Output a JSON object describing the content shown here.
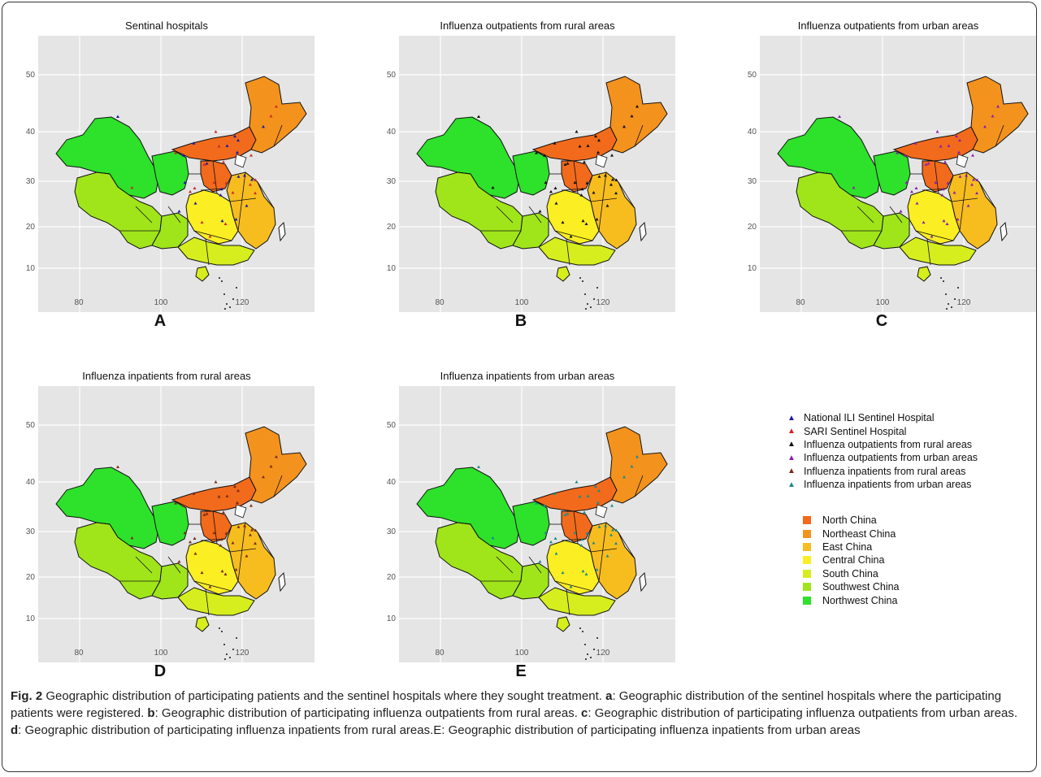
{
  "panels": [
    {
      "id": "A",
      "title": "Sentinal hospitals",
      "letter": "A",
      "marker_colors": [
        "#1a1aa8",
        "#cc2a2a"
      ]
    },
    {
      "id": "B",
      "title": "Influenza outpatients from rural areas",
      "letter": "B",
      "marker_colors": [
        "#111111"
      ]
    },
    {
      "id": "C",
      "title": "Influenza outpatients from urban areas",
      "letter": "C",
      "marker_colors": [
        "#8a1fb0"
      ]
    },
    {
      "id": "D",
      "title": "Influenza inpatients from rural areas",
      "letter": "D",
      "marker_colors": [
        "#7a2c1a"
      ]
    },
    {
      "id": "E",
      "title": "Influenza inpatients from urban areas",
      "letter": "E",
      "marker_colors": [
        "#1b8a8a"
      ]
    }
  ],
  "axes": {
    "y_ticks": [
      "50",
      "40",
      "30",
      "20",
      "10"
    ],
    "x_ticks": [
      "80",
      "100",
      "120"
    ]
  },
  "marker_legend": [
    {
      "label": "National ILI Sentinel Hospital",
      "color": "#1a1aa8",
      "symbol": "▲"
    },
    {
      "label": "SARI Sentinel Hospital",
      "color": "#d42020",
      "symbol": "▲"
    },
    {
      "label": "Influenza outpatients from rural areas",
      "color": "#111111",
      "symbol": "▲"
    },
    {
      "label": "Influenza outpatients from urban areas",
      "color": "#8a1fb0",
      "symbol": "▲"
    },
    {
      "label": "Influenza inpatients from rural areas",
      "color": "#7a2c1a",
      "symbol": "▲"
    },
    {
      "label": "Influenza inpatients from urban areas",
      "color": "#1b8a8a",
      "symbol": "▲"
    }
  ],
  "region_legend": [
    {
      "label": "North China",
      "color": "#f26a1b"
    },
    {
      "label": "Northeast China",
      "color": "#f4921e"
    },
    {
      "label": "East China",
      "color": "#f7bd1f"
    },
    {
      "label": "Central China",
      "color": "#fbee23"
    },
    {
      "label": "South China",
      "color": "#d6ee1e"
    },
    {
      "label": "Southwest China",
      "color": "#9fe51a"
    },
    {
      "label": "Northwest China",
      "color": "#2ee12a"
    }
  ],
  "caption": {
    "fig_label": "Fig. 2",
    "intro": " Geographic distribution of participating patients and the sentinel hospitals where they sought treatment. ",
    "a_label": "a",
    "a_text": ": Geographic distribution of the sentinel hospitals where the participating patients were registered. ",
    "b_label": "b",
    "b_text": ": Geographic distribution of participating influenza outpatients from rural areas. ",
    "c_label": "c",
    "c_text": ": Geographic distribution of participating influenza outpatients from urban areas. ",
    "d_label": "d",
    "d_text": ": Geographic distribution of participating influenza inpatients from rural areas.E: Geographic distribution of participating influenza inpatients from urban areas"
  }
}
